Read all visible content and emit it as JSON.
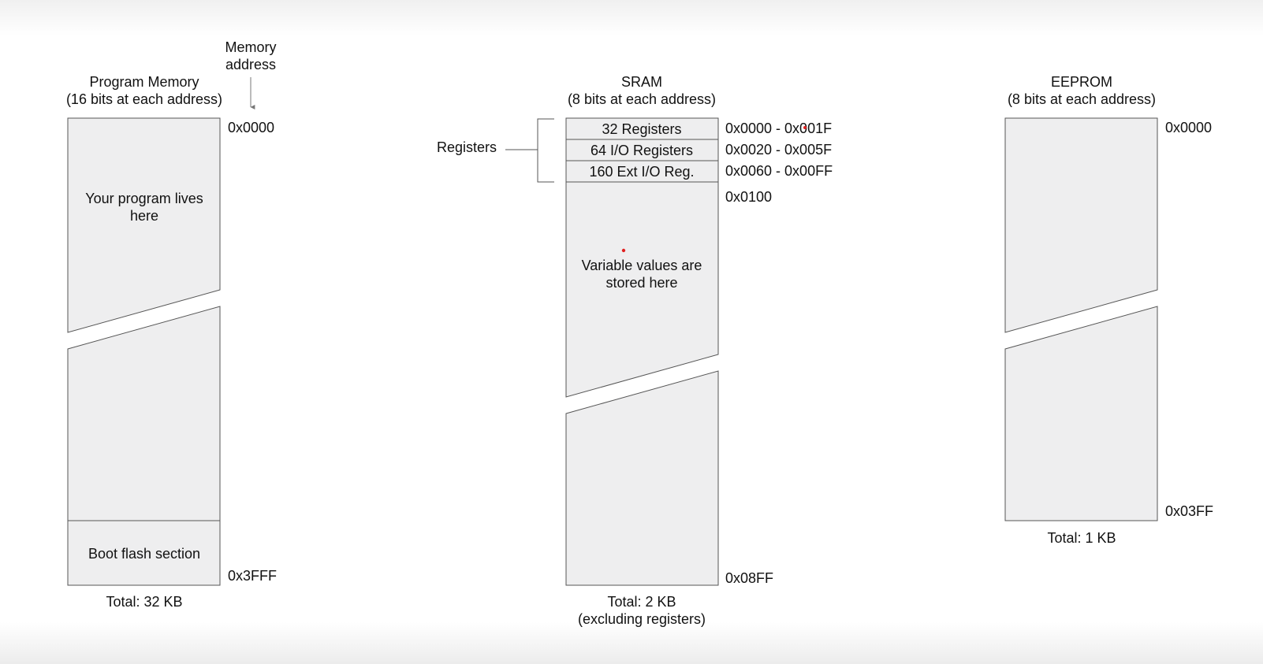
{
  "program_memory": {
    "title_line1": "Program Memory",
    "title_line2": "(16 bits at each address)",
    "address_label_line1": "Memory",
    "address_label_line2": "address",
    "addr_start": "0x0000",
    "addr_end": "0x3FFF",
    "body_line1": "Your program lives",
    "body_line2": "here",
    "boot_section": "Boot flash section",
    "total": "Total: 32 KB"
  },
  "sram": {
    "title_line1": "SRAM",
    "title_line2": "(8 bits at each address)",
    "registers_label": "Registers",
    "rows": [
      {
        "label": "32 Registers",
        "range": "0x0000 - 0x001F"
      },
      {
        "label": "64 I/O Registers",
        "range": "0x0020 - 0x005F"
      },
      {
        "label": "160 Ext I/O Reg.",
        "range": "0x0060 - 0x00FF"
      }
    ],
    "addr_start": "0x0100",
    "addr_end": "0x08FF",
    "body_line1": "Variable values are",
    "body_line2": "stored here",
    "total_line1": "Total: 2 KB",
    "total_line2": "(excluding registers)"
  },
  "eeprom": {
    "title_line1": "EEPROM",
    "title_line2": "(8 bits at each address)",
    "addr_start": "0x0000",
    "addr_end": "0x03FF",
    "total": "Total: 1 KB"
  },
  "colors": {
    "block_fill": "#eeeeef",
    "block_stroke": "#555555",
    "text": "#111111",
    "marker": "#e02020"
  }
}
